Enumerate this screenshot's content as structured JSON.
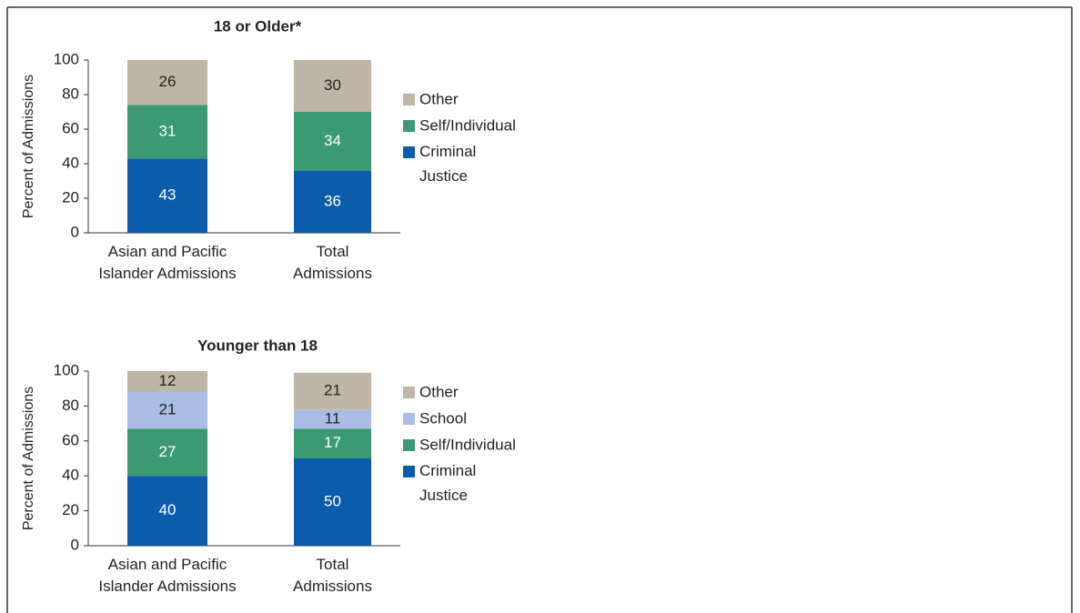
{
  "chart_data": [
    {
      "type": "stacked_bar",
      "title": "18 or Older*",
      "y_label": "Percent of Admissions",
      "categories": [
        "Asian and Pacific Islander Admissions",
        "Total Admissions"
      ],
      "series": [
        {
          "name": "Criminal Justice",
          "color": "#0b5cab",
          "values": [
            43,
            36
          ]
        },
        {
          "name": "Self/Individual",
          "color": "#3b9a73",
          "values": [
            31,
            34
          ]
        },
        {
          "name": "Other",
          "color": "#bfb6a5",
          "values": [
            26,
            30
          ]
        }
      ],
      "ylim": [
        0,
        100
      ],
      "yticks": [
        0,
        20,
        40,
        60,
        80,
        100
      ]
    },
    {
      "type": "stacked_bar",
      "title": "Younger than 18",
      "y_label": "Percent of Admissions",
      "categories": [
        "Asian and Pacific Islander Admissions",
        "Total Admissions"
      ],
      "series": [
        {
          "name": "Criminal Justice",
          "color": "#0b5cab",
          "values": [
            40,
            50
          ]
        },
        {
          "name": "Self/Individual",
          "color": "#3b9a73",
          "values": [
            27,
            17
          ]
        },
        {
          "name": "School",
          "color": "#aabde4",
          "values": [
            21,
            11
          ]
        },
        {
          "name": "Other",
          "color": "#bfb6a5",
          "values": [
            12,
            21
          ]
        }
      ],
      "ylim": [
        0,
        100
      ],
      "yticks": [
        0,
        20,
        40,
        60,
        80,
        100
      ]
    }
  ]
}
